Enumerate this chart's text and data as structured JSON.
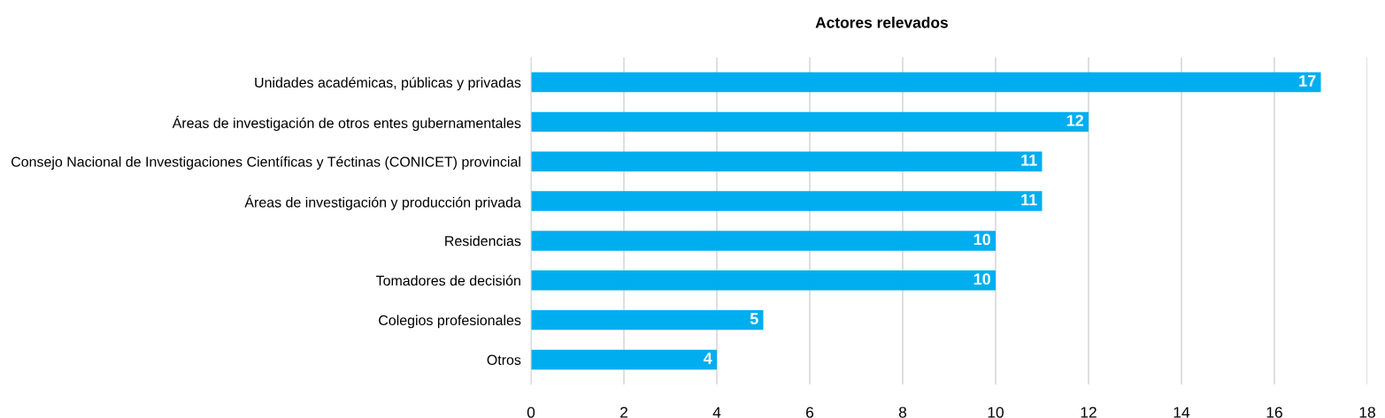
{
  "chart_data": {
    "type": "bar",
    "orientation": "horizontal",
    "title": "Actores relevados",
    "categories": [
      "Unidades académicas, públicas y privadas",
      "Áreas de investigación de otros entes gubernamentales",
      "Consejo Nacional de Investigaciones Científicas y Téctinas (CONICET) provincial",
      "Áreas de investigación y producción privada",
      "Residencias",
      "Tomadores de decisión",
      "Colegios profesionales",
      "Otros"
    ],
    "values": [
      17,
      12,
      11,
      11,
      10,
      10,
      5,
      4
    ],
    "color": "#00aeef",
    "xlim": [
      0,
      18
    ],
    "xticks": [
      0,
      2,
      4,
      6,
      8,
      10,
      12,
      14,
      16,
      18
    ],
    "grid": "x",
    "data_labels": true,
    "legend": false
  }
}
